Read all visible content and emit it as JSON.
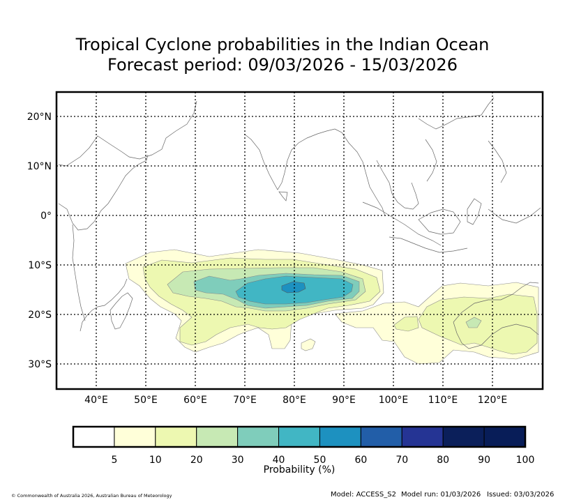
{
  "title": {
    "line1": "Tropical Cyclone probabilities in the Indian Ocean",
    "line2": "Forecast period: 09/03/2026 - 15/03/2026"
  },
  "map": {
    "lat_labels": [
      "20°N",
      "10°N",
      "0°",
      "10°S",
      "20°S",
      "30°S"
    ],
    "lon_labels": [
      "40°E",
      "50°E",
      "60°E",
      "70°E",
      "80°E",
      "90°E",
      "100°E",
      "110°E",
      "120°E"
    ]
  },
  "colorbar": {
    "label": "Probability (%)",
    "ticks": [
      "5",
      "10",
      "20",
      "30",
      "40",
      "50",
      "60",
      "70",
      "80",
      "90",
      "100"
    ],
    "colors": [
      "#ffffff",
      "#ffffd9",
      "#edf8b1",
      "#c7e9b4",
      "#7fcdbb",
      "#41b6c4",
      "#1d91c0",
      "#225ea8",
      "#253494",
      "#0b1f5a",
      "#081d58"
    ]
  },
  "footer": {
    "copyright": "© Commonwealth of Australia 2026, Australian Bureau of Meteorology",
    "model": "Model: ACCESS_S2",
    "run": "Model run: 01/03/2026",
    "issued": "Issued: 03/03/2026"
  }
}
